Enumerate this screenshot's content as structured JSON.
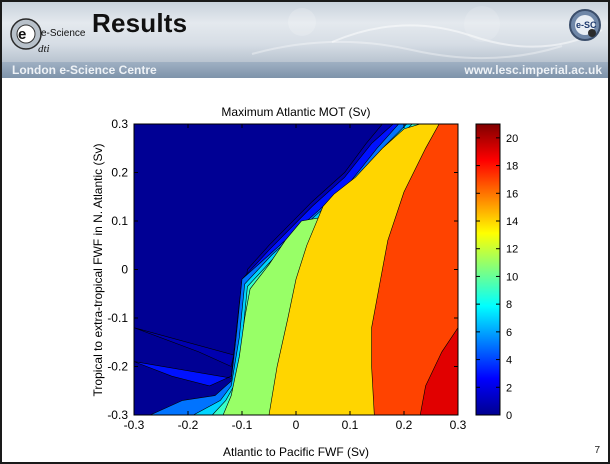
{
  "header": {
    "logo_text": "e-Science",
    "title": "Results",
    "right_logo_text": "e-SC",
    "org_left": "London e-Science Centre",
    "org_right": "www.lesc.imperial.ac.uk"
  },
  "page_number": "7",
  "chart_data": {
    "type": "contour",
    "title": "Maximum Atlantic MOT (Sv)",
    "xlabel": "Atlantic to Pacific FWF (Sv)",
    "ylabel": "Tropical to extra-tropical FWF in N. Atlantic (Sv)",
    "xlim": [
      -0.3,
      0.3
    ],
    "ylim": [
      -0.3,
      0.3
    ],
    "xticks": [
      "-0.3",
      "-0.2",
      "-0.1",
      "0",
      "0.1",
      "0.2",
      "0.3"
    ],
    "yticks": [
      "-0.3",
      "-0.2",
      "-0.1",
      "0",
      "0.1",
      "0.2",
      "0.3"
    ],
    "colorbar": {
      "min": 0,
      "max": 21,
      "ticks": [
        "0",
        "2",
        "4",
        "6",
        "8",
        "10",
        "12",
        "14",
        "16",
        "18",
        "20"
      ]
    },
    "contour_levels": [
      {
        "value": 1,
        "boundary": [
          [
            -0.3,
            -0.12
          ],
          [
            -0.18,
            -0.17
          ],
          [
            -0.12,
            -0.2
          ],
          [
            -0.1,
            -0.1
          ],
          [
            -0.09,
            0
          ],
          [
            -0.05,
            0.05
          ],
          [
            0.03,
            0.14
          ],
          [
            0.09,
            0.2
          ],
          [
            0.13,
            0.26
          ],
          [
            0.16,
            0.3
          ]
        ]
      },
      {
        "value": 3,
        "boundary": [
          [
            -0.3,
            -0.19
          ],
          [
            -0.23,
            -0.22
          ],
          [
            -0.16,
            -0.24
          ],
          [
            -0.12,
            -0.22
          ],
          [
            -0.11,
            -0.12
          ],
          [
            -0.1,
            -0.02
          ],
          [
            -0.05,
            0.04
          ],
          [
            0.03,
            0.13
          ],
          [
            0.09,
            0.19
          ],
          [
            0.14,
            0.26
          ],
          [
            0.18,
            0.3
          ]
        ]
      },
      {
        "value": 5,
        "boundary": [
          [
            -0.27,
            -0.3
          ],
          [
            -0.21,
            -0.27
          ],
          [
            -0.15,
            -0.26
          ],
          [
            -0.12,
            -0.23
          ],
          [
            -0.11,
            -0.13
          ],
          [
            -0.1,
            -0.02
          ],
          [
            -0.05,
            0.03
          ],
          [
            0.04,
            0.12
          ],
          [
            0.1,
            0.18
          ],
          [
            0.15,
            0.25
          ],
          [
            0.19,
            0.3
          ]
        ]
      },
      {
        "value": 7,
        "boundary": [
          [
            -0.19,
            -0.3
          ],
          [
            -0.14,
            -0.27
          ],
          [
            -0.12,
            -0.24
          ],
          [
            -0.105,
            -0.14
          ],
          [
            -0.095,
            -0.03
          ],
          [
            -0.045,
            0.03
          ],
          [
            0.045,
            0.12
          ],
          [
            0.11,
            0.18
          ],
          [
            0.16,
            0.25
          ],
          [
            0.205,
            0.3
          ]
        ]
      },
      {
        "value": 9,
        "boundary": [
          [
            -0.155,
            -0.3
          ],
          [
            -0.13,
            -0.27
          ],
          [
            -0.115,
            -0.24
          ],
          [
            -0.1,
            -0.15
          ],
          [
            -0.09,
            -0.035
          ],
          [
            -0.04,
            0.025
          ],
          [
            0.05,
            0.115
          ],
          [
            0.115,
            0.175
          ],
          [
            0.17,
            0.25
          ],
          [
            0.215,
            0.3
          ]
        ]
      },
      {
        "value": 11,
        "boundary": [
          [
            -0.135,
            -0.3
          ],
          [
            -0.12,
            -0.26
          ],
          [
            -0.105,
            -0.18
          ],
          [
            -0.095,
            -0.1
          ],
          [
            -0.085,
            -0.04
          ],
          [
            -0.05,
            0.01
          ],
          [
            -0.02,
            0.06
          ],
          [
            0.01,
            0.1
          ],
          [
            0.06,
            0.11
          ],
          [
            0.12,
            0.17
          ],
          [
            0.18,
            0.25
          ],
          [
            0.23,
            0.3
          ]
        ]
      },
      {
        "value": 14,
        "boundary": [
          [
            -0.05,
            -0.3
          ],
          [
            -0.035,
            -0.2
          ],
          [
            -0.015,
            -0.1
          ],
          [
            0,
            -0.02
          ],
          [
            0.02,
            0.05
          ],
          [
            0.05,
            0.13
          ],
          [
            0.07,
            0.155
          ],
          [
            0.11,
            0.19
          ],
          [
            0.16,
            0.25
          ],
          [
            0.2,
            0.29
          ],
          [
            0.23,
            0.3
          ]
        ]
      },
      {
        "value": 17,
        "boundary": [
          [
            0.145,
            -0.3
          ],
          [
            0.14,
            -0.2
          ],
          [
            0.14,
            -0.12
          ],
          [
            0.155,
            -0.03
          ],
          [
            0.17,
            0.06
          ],
          [
            0.2,
            0.16
          ],
          [
            0.24,
            0.25
          ],
          [
            0.265,
            0.3
          ]
        ]
      },
      {
        "value": 19,
        "boundary": [
          [
            0.23,
            -0.3
          ],
          [
            0.24,
            -0.24
          ],
          [
            0.27,
            -0.17
          ],
          [
            0.3,
            -0.12
          ]
        ]
      }
    ]
  }
}
